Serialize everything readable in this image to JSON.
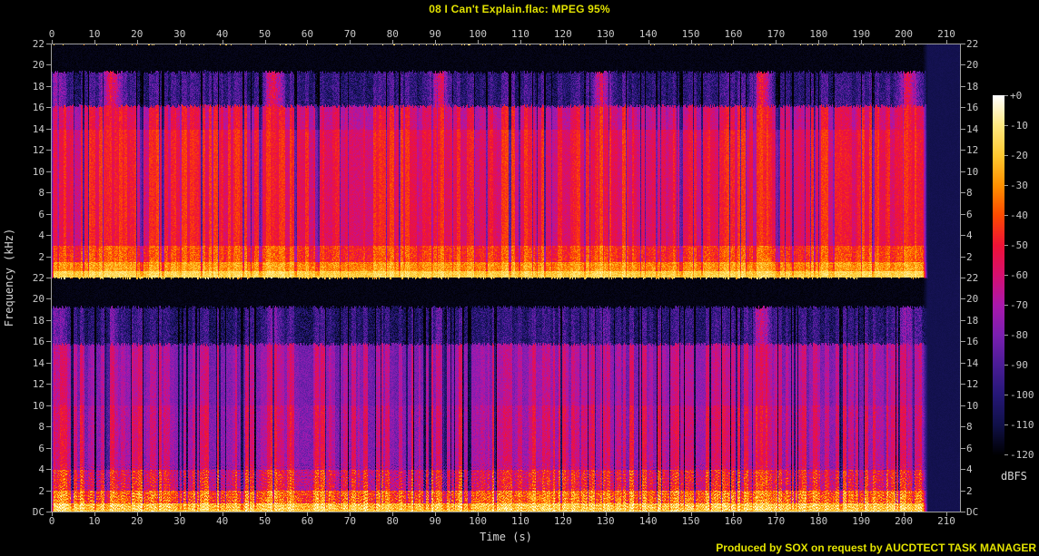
{
  "title": "08 I Can't Explain.flac: MPEG 95%",
  "credit": "Produced by SOX on request by AUCDTECT TASK MANAGER",
  "axes": {
    "time_label": "Time (s)",
    "freq_label": "Frequency (kHz)",
    "time_ticks": [
      0,
      10,
      20,
      30,
      40,
      50,
      60,
      70,
      80,
      90,
      100,
      110,
      120,
      130,
      140,
      150,
      160,
      170,
      180,
      190,
      200,
      210
    ],
    "freq_ticks": [
      "22",
      "20",
      "18",
      "16",
      "14",
      "12",
      "10",
      "8",
      "6",
      "4",
      "2",
      "DC"
    ]
  },
  "colorbar": {
    "unit": "dBFS",
    "ticks": [
      "+0",
      "-10",
      "-20",
      "-30",
      "-40",
      "-50",
      "-60",
      "-70",
      "-80",
      "-90",
      "-100",
      "-110",
      "-120"
    ]
  },
  "colors": {
    "background": "#000000",
    "title_text": "#e3e300",
    "credit_text": "#e3e300",
    "tick_text": "#c9c9c9",
    "axis_line": "#9f9f9f"
  },
  "chart_data": {
    "type": "heatmap",
    "subtype": "stereo-audio-spectrogram",
    "title": "08 I Can't Explain.flac: MPEG 95%",
    "xlabel": "Time (s)",
    "ylabel": "Frequency (kHz)",
    "legend": "dBFS color scale, +0 (white) to -120 (black)",
    "x_range_s": [
      0,
      213.2
    ],
    "y_range_khz": [
      0,
      22.05
    ],
    "db_range": [
      0,
      -120
    ],
    "time_tick_step_s": 10,
    "freq_tick_step_khz": 2,
    "content_end_s": 205.6,
    "lowpass_cutoff_khz": 19.3,
    "channels": [
      {
        "name": "left-channel-top-panel",
        "bands": [
          {
            "lo": 19.4,
            "hi": 22.1,
            "base": 0.02,
            "stripe": 0.0,
            "speckle": 0.015,
            "burst": 0.0
          },
          {
            "lo": 16.2,
            "hi": 19.4,
            "base": 0.17,
            "stripe": 0.09,
            "speckle": 0.09,
            "burst": 0.4
          },
          {
            "lo": 14.0,
            "hi": 16.2,
            "base": 0.47,
            "stripe": 0.13,
            "speckle": 0.05,
            "burst": 0.14
          },
          {
            "lo": 3.0,
            "hi": 14.0,
            "base": 0.53,
            "stripe": 0.11,
            "speckle": 0.045,
            "burst": 0.09
          },
          {
            "lo": 1.5,
            "hi": 3.0,
            "base": 0.62,
            "stripe": 0.09,
            "speckle": 0.07,
            "burst": 0.1
          },
          {
            "lo": 0.6,
            "hi": 1.5,
            "base": 0.74,
            "stripe": 0.06,
            "speckle": 0.07,
            "burst": 0.06
          },
          {
            "lo": 0.0,
            "hi": 0.6,
            "base": 0.85,
            "stripe": 0.04,
            "speckle": 0.05,
            "burst": 0.04
          }
        ],
        "bursts": [
          {
            "t": 1,
            "a": 0.6
          },
          {
            "t": 14,
            "a": 1.0
          },
          {
            "t": 52,
            "a": 0.95
          },
          {
            "t": 91,
            "a": 0.9
          },
          {
            "t": 129,
            "a": 0.85
          },
          {
            "t": 166.5,
            "a": 1.0
          },
          {
            "t": 201,
            "a": 0.9
          }
        ]
      },
      {
        "name": "right-channel-bottom-panel",
        "bands": [
          {
            "lo": 19.3,
            "hi": 22.1,
            "base": 0.02,
            "stripe": 0.0,
            "speckle": 0.015,
            "burst": 0.0
          },
          {
            "lo": 15.8,
            "hi": 19.3,
            "base": 0.16,
            "stripe": 0.09,
            "speckle": 0.09,
            "burst": 0.3
          },
          {
            "lo": 10.0,
            "hi": 15.8,
            "base": 0.385,
            "stripe": 0.13,
            "speckle": 0.05,
            "burst": 0.12
          },
          {
            "lo": 4.0,
            "hi": 10.0,
            "base": 0.42,
            "stripe": 0.15,
            "speckle": 0.06,
            "burst": 0.12
          },
          {
            "lo": 2.0,
            "hi": 4.0,
            "base": 0.52,
            "stripe": 0.15,
            "speckle": 0.1,
            "burst": 0.12
          },
          {
            "lo": 0.8,
            "hi": 2.0,
            "base": 0.68,
            "stripe": 0.11,
            "speckle": 0.11,
            "burst": 0.08
          },
          {
            "lo": 0.0,
            "hi": 0.8,
            "base": 0.84,
            "stripe": 0.06,
            "speckle": 0.08,
            "burst": 0.05
          }
        ],
        "bursts": [
          {
            "t": 1,
            "a": 0.5
          },
          {
            "t": 14,
            "a": 0.45
          },
          {
            "t": 52,
            "a": 0.4
          },
          {
            "t": 91,
            "a": 0.4
          },
          {
            "t": 129,
            "a": 0.35
          },
          {
            "t": 166.5,
            "a": 1.0
          },
          {
            "t": 201,
            "a": 0.7
          }
        ]
      }
    ],
    "palette": [
      [
        0.0,
        0,
        0,
        2
      ],
      [
        0.083,
        16,
        16,
        72
      ],
      [
        0.167,
        37,
        23,
        118
      ],
      [
        0.25,
        74,
        28,
        150
      ],
      [
        0.333,
        122,
        31,
        176
      ],
      [
        0.417,
        169,
        24,
        172
      ],
      [
        0.5,
        214,
        15,
        111
      ],
      [
        0.583,
        239,
        18,
        54
      ],
      [
        0.667,
        253,
        74,
        0
      ],
      [
        0.75,
        255,
        144,
        0
      ],
      [
        0.833,
        255,
        200,
        48
      ],
      [
        0.917,
        255,
        232,
        128
      ],
      [
        1.0,
        255,
        255,
        255
      ]
    ]
  }
}
